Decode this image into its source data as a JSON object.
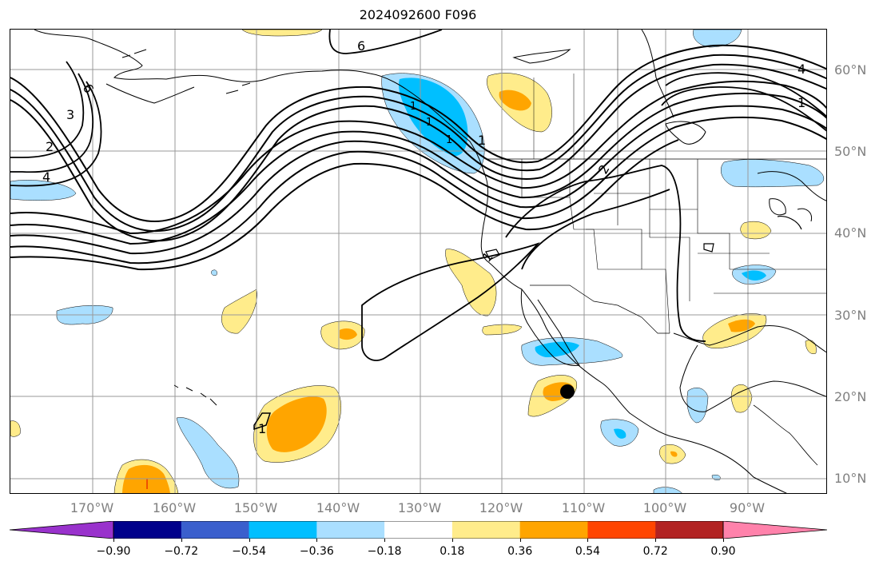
{
  "title": "2024092600 F096",
  "lat_labels": [
    "60°N",
    "50°N",
    "40°N",
    "30°N",
    "20°N",
    "10°N"
  ],
  "lon_labels": [
    "170°W",
    "160°W",
    "150°W",
    "140°W",
    "130°W",
    "120°W",
    "110°W",
    "100°W",
    "90°W"
  ],
  "contour_labels": [
    "6",
    "6",
    "3",
    "2",
    "4",
    "4",
    "1",
    "1",
    "2",
    "1",
    "1",
    "1",
    "1",
    "1"
  ],
  "colorbar": {
    "ticks": [
      "−0.90",
      "−0.72",
      "−0.54",
      "−0.36",
      "−0.18",
      "0.18",
      "0.36",
      "0.54",
      "0.72",
      "0.90"
    ],
    "colors": {
      "under": "#9932cc",
      "bins": [
        "#9932cc",
        "#00008b",
        "#3a5fcd",
        "#00bfff",
        "#aadfff",
        "#ffffff",
        "#ffec8b",
        "#ffa500",
        "#ff4500",
        "#b22222",
        "#ff82ab"
      ],
      "over": "#ff82ab"
    }
  },
  "colors": {
    "shade_light_yellow": "#ffec8b",
    "shade_orange": "#ffa500",
    "shade_light_blue": "#aadfff",
    "shade_blue": "#00bfff",
    "gridline": "#999999"
  },
  "marker": {
    "label": "",
    "type": "black-dot"
  }
}
